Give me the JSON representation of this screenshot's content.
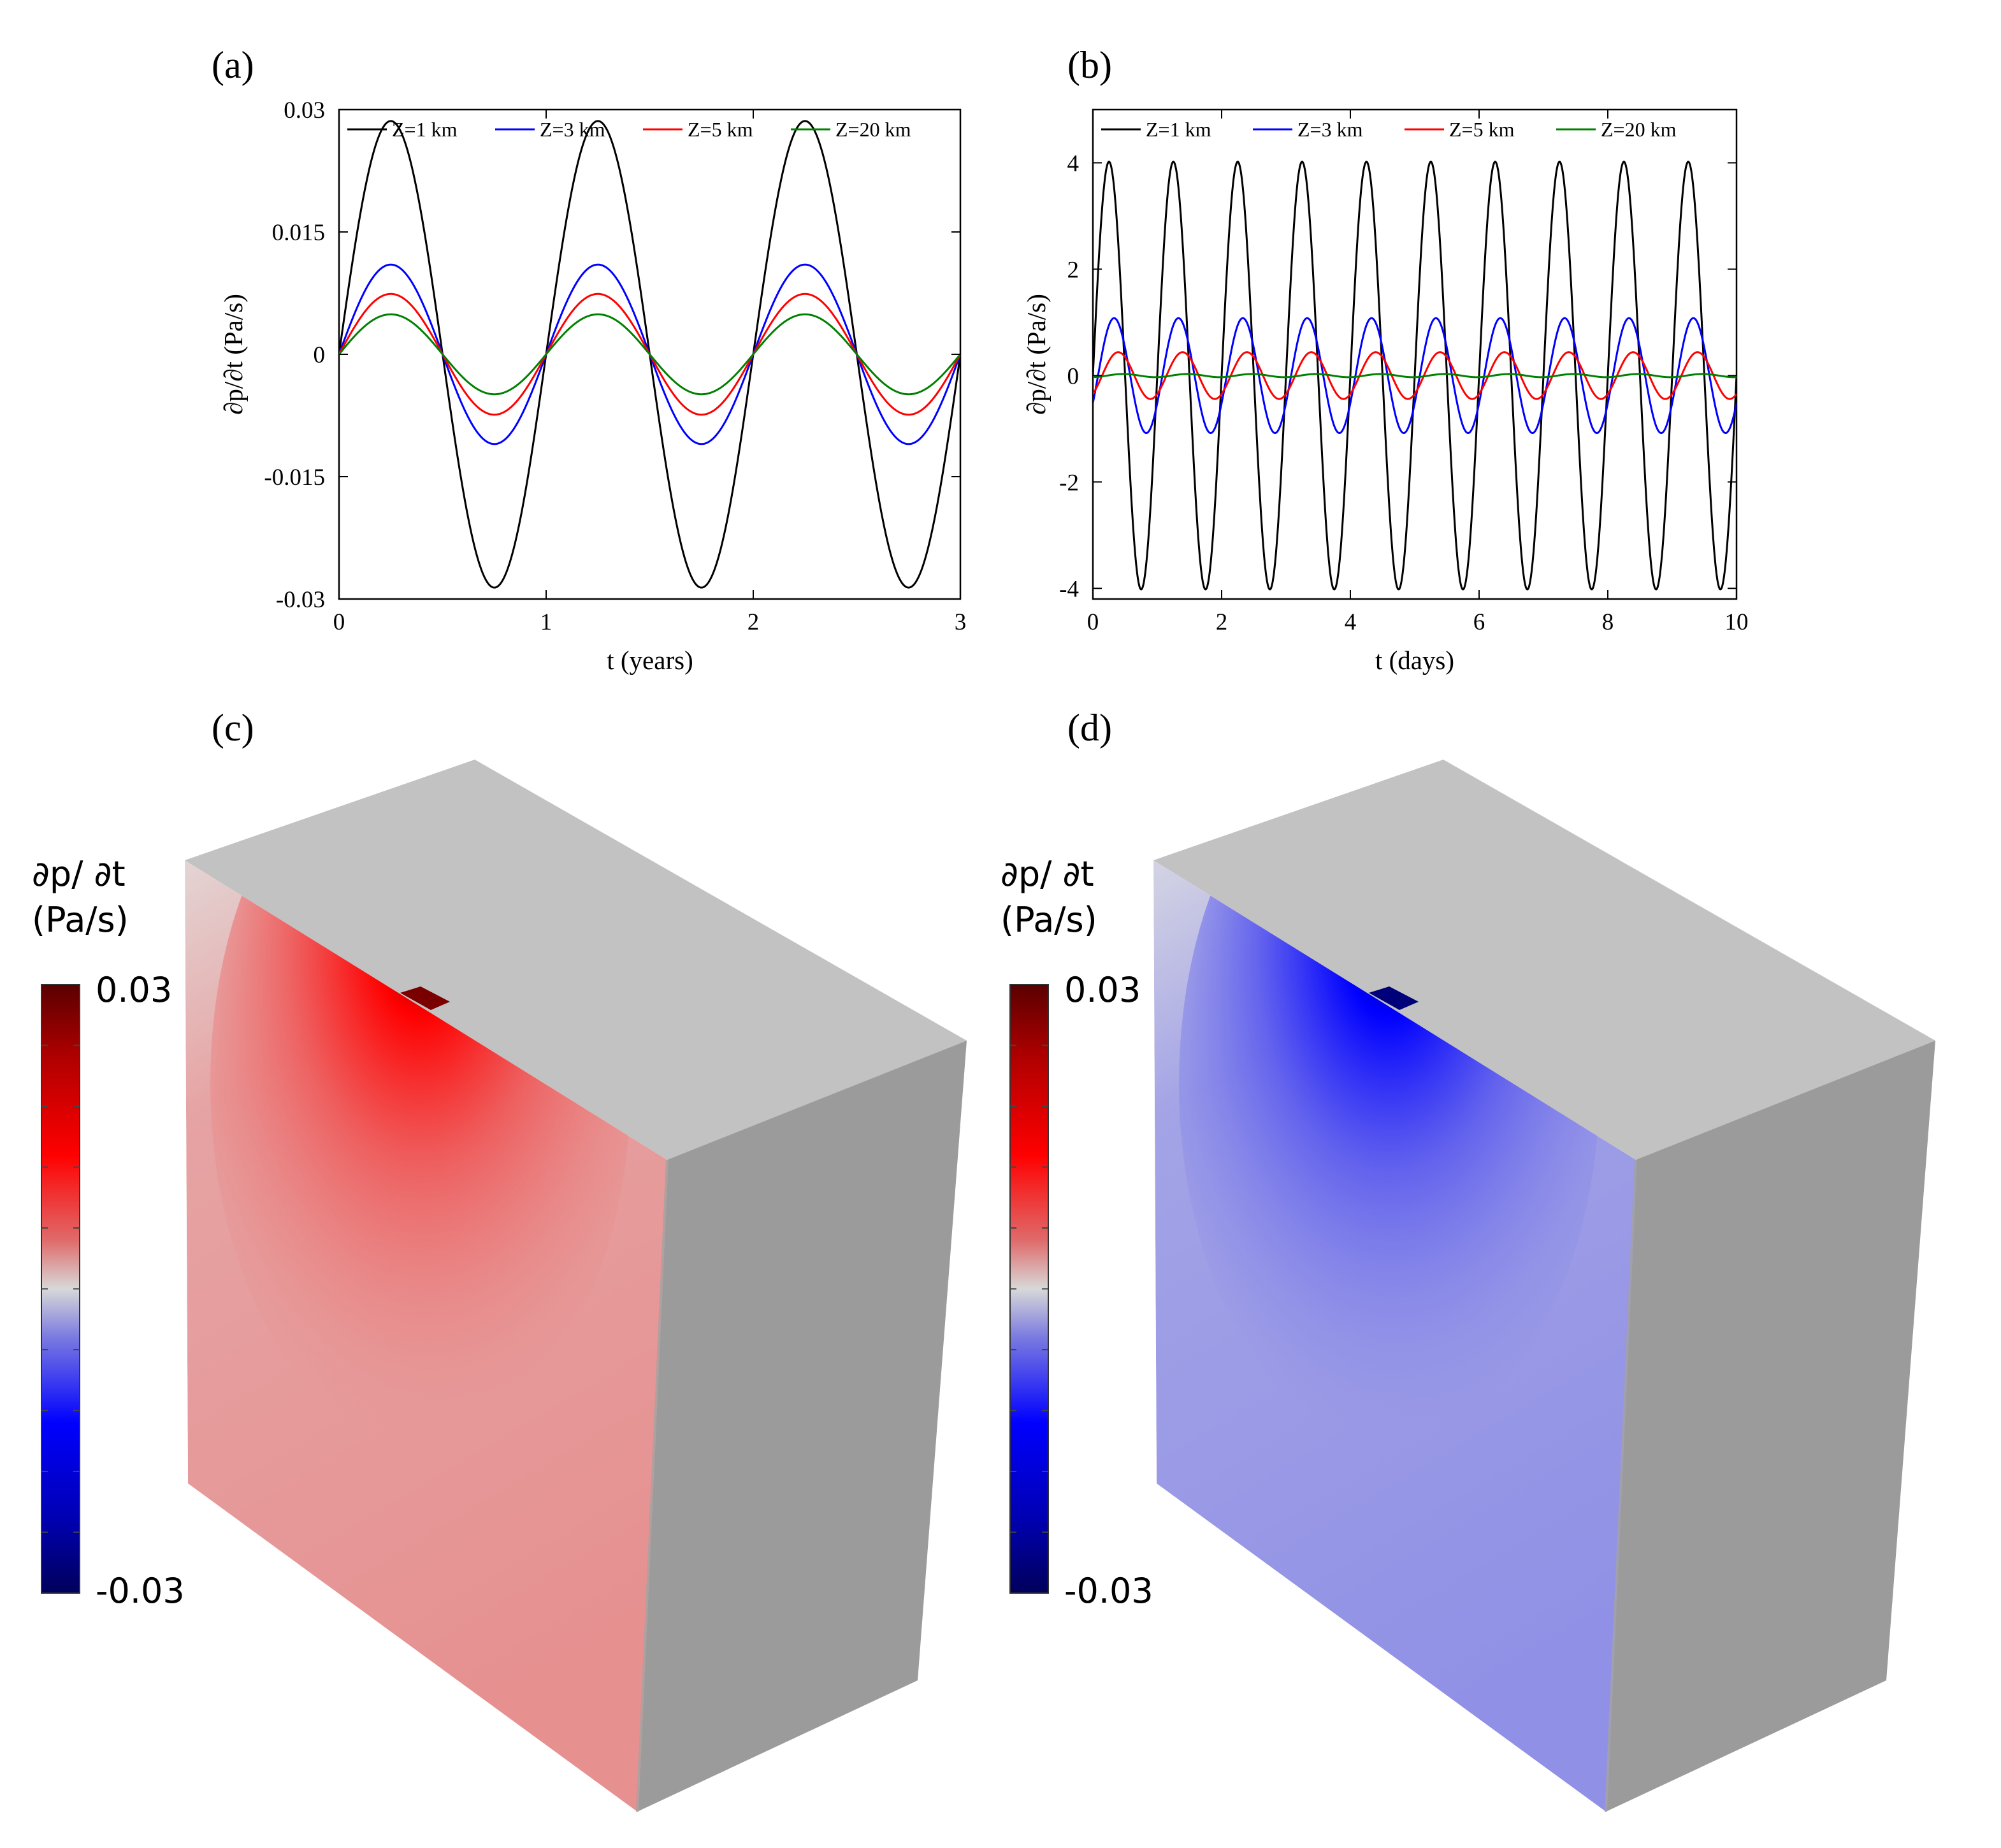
{
  "chart_data": [
    {
      "panel": "(a)",
      "type": "line",
      "xlabel": "t (years)",
      "ylabel": "∂p/∂t (Pa/s)",
      "xlim": [
        0,
        3
      ],
      "ylim": [
        -0.03,
        0.03
      ],
      "xticks": [
        "0",
        "1",
        "2",
        "3"
      ],
      "yticks": [
        "-0.03",
        "-0.015",
        "0",
        "0.015",
        "0.03"
      ],
      "legend": "top, horizontal",
      "grid": false,
      "period": 1,
      "series": [
        {
          "name": "Z=1 km",
          "color": "#000000",
          "amplitude": 0.0286,
          "phase": 0
        },
        {
          "name": "Z=3 km",
          "color": "#0000ff",
          "amplitude": 0.011,
          "phase": 0
        },
        {
          "name": "Z=5 km",
          "color": "#ff0000",
          "amplitude": 0.0074,
          "phase": 0
        },
        {
          "name": "Z=20 km",
          "color": "#008000",
          "amplitude": 0.0049,
          "phase": 0
        }
      ]
    },
    {
      "panel": "(b)",
      "type": "line",
      "xlabel": "t (days)",
      "ylabel": "∂p/∂t (Pa/s)",
      "xlim": [
        0,
        10
      ],
      "ylim": [
        -4.2,
        5
      ],
      "xticks": [
        "0",
        "2",
        "4",
        "6",
        "8",
        "10"
      ],
      "yticks": [
        "-4",
        "-2",
        "0",
        "2",
        "4"
      ],
      "legend": "top, horizontal",
      "grid": false,
      "period": 1,
      "series": [
        {
          "name": "Z=1 km",
          "color": "#000000",
          "amplitude": 4.02,
          "phase": 0
        },
        {
          "name": "Z=3 km",
          "color": "#0000ff",
          "amplitude": 1.08,
          "phase": -0.5
        },
        {
          "name": "Z=5 km",
          "color": "#ff0000",
          "amplitude": 0.44,
          "phase": -0.9
        },
        {
          "name": "Z=20 km",
          "color": "#008000",
          "amplitude": 0.03,
          "phase": -1.4
        }
      ]
    }
  ],
  "panels_3d": [
    {
      "label": "(c)",
      "colorbar_title_1": "∂p/ ∂t",
      "colorbar_title_2": "(Pa/s)",
      "colorbar_max": "0.03",
      "colorbar_min": "-0.03",
      "front_face_color": "#e89393",
      "source_color": "#ff0000"
    },
    {
      "label": "(d)",
      "colorbar_title_1": "∂p/ ∂t",
      "colorbar_title_2": "(Pa/s)",
      "colorbar_max": "0.03",
      "colorbar_min": "-0.03",
      "front_face_color": "#9393e8",
      "source_color": "#0000ff"
    }
  ]
}
